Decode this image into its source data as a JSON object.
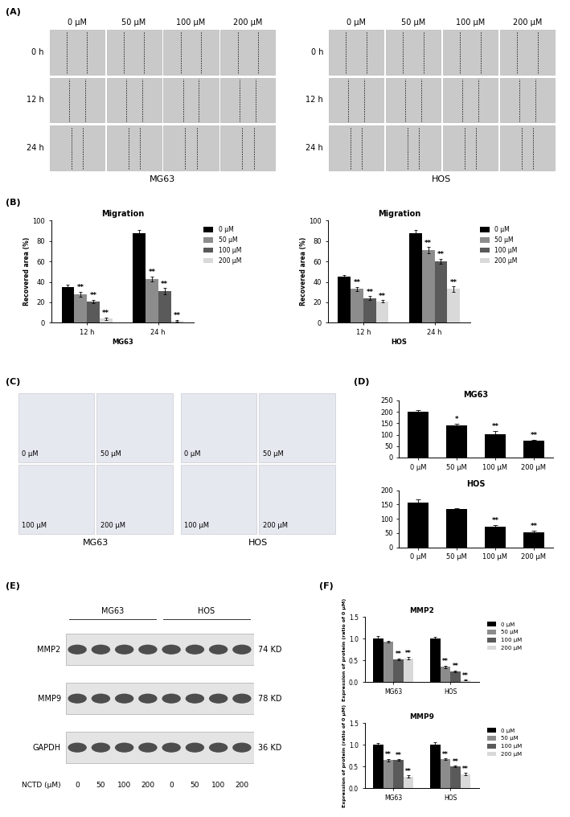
{
  "panel_labels": [
    "(A)",
    "(B)",
    "(C)",
    "(D)",
    "(E)",
    "(F)"
  ],
  "wound_healing": [
    {
      "cell_line": "MG63",
      "concentrations": [
        "0 µM",
        "50 µM",
        "100 µM",
        "200 µM"
      ],
      "times": [
        "0 h",
        "12 h",
        "24 h"
      ]
    },
    {
      "cell_line": "HOS",
      "concentrations": [
        "0 µM",
        "50 µM",
        "100 µM",
        "200 µM"
      ],
      "times": [
        "0 h",
        "12 h",
        "24 h"
      ]
    }
  ],
  "transwell": [
    {
      "cell_line": "MG63",
      "concentrations": [
        "0 µM",
        "50 µM",
        "100 µM",
        "200 µM"
      ]
    },
    {
      "cell_line": "HOS",
      "concentrations": [
        "0 µM",
        "50 µM",
        "100 µM",
        "200 µM"
      ]
    }
  ],
  "western_blot": {
    "cell_lines": [
      "MG63",
      "HOS"
    ],
    "proteins": [
      {
        "name": "MMP2",
        "size": "74 KD"
      },
      {
        "name": "MMP9",
        "size": "78 KD"
      },
      {
        "name": "GAPDH",
        "size": "36 KD"
      }
    ],
    "treatment_label": "NCTD (µM)",
    "lanes": [
      "0",
      "50",
      "100",
      "200"
    ]
  },
  "chart_data": [
    {
      "type": "bar",
      "title": "Migration",
      "x_label": "MG63",
      "y_label": "Recovered area (%)",
      "categories": [
        "12 h",
        "24 h"
      ],
      "series": [
        {
          "name": "0 µM",
          "color": "#000000",
          "values": [
            35,
            88
          ],
          "errors": [
            2,
            3
          ],
          "annotations": [
            null,
            null
          ]
        },
        {
          "name": "50 µM",
          "color": "#8c8c8c",
          "values": [
            28,
            43
          ],
          "errors": [
            2.5,
            2.5
          ],
          "annotations": [
            "**",
            "**"
          ]
        },
        {
          "name": "100 µM",
          "color": "#5a5a5a",
          "values": [
            21,
            31
          ],
          "errors": [
            1.5,
            3
          ],
          "annotations": [
            "**",
            "**"
          ]
        },
        {
          "name": "200 µM",
          "color": "#d9d9d9",
          "values": [
            4,
            2
          ],
          "errors": [
            1,
            1
          ],
          "annotations": [
            "**",
            "**"
          ]
        }
      ],
      "ylim": [
        0,
        100
      ],
      "yticks": [
        0,
        20,
        40,
        60,
        80,
        100
      ],
      "legend": "upper left"
    },
    {
      "type": "bar",
      "title": "Migration",
      "x_label": "HOS",
      "y_label": "Recovered area (%)",
      "categories": [
        "12 h",
        "24 h"
      ],
      "series": [
        {
          "name": "0 µM",
          "color": "#000000",
          "values": [
            45,
            88
          ],
          "errors": [
            1.5,
            2.5
          ],
          "annotations": [
            null,
            null
          ]
        },
        {
          "name": "50 µM",
          "color": "#8c8c8c",
          "values": [
            33,
            71
          ],
          "errors": [
            2,
            3
          ],
          "annotations": [
            "**",
            "**"
          ]
        },
        {
          "name": "100 µM",
          "color": "#5a5a5a",
          "values": [
            24,
            60
          ],
          "errors": [
            2,
            2.5
          ],
          "annotations": [
            "**",
            "**"
          ]
        },
        {
          "name": "200 µM",
          "color": "#d9d9d9",
          "values": [
            21,
            33
          ],
          "errors": [
            1,
            2.5
          ],
          "annotations": [
            "**",
            "**"
          ]
        }
      ],
      "ylim": [
        0,
        100
      ],
      "yticks": [
        0,
        20,
        40,
        60,
        80,
        100
      ],
      "legend": "upper left"
    },
    {
      "type": "bar",
      "title": "MG63",
      "categories": [
        "0 µM",
        "50 µM",
        "100 µM",
        "200 µM"
      ],
      "values": [
        200,
        142,
        103,
        72
      ],
      "errors": [
        8,
        6,
        14,
        6
      ],
      "annotations": [
        null,
        "*",
        "**",
        "**"
      ],
      "color": "#000000",
      "ylim": [
        0,
        250
      ],
      "yticks": [
        0,
        50,
        100,
        150,
        200,
        250
      ]
    },
    {
      "type": "bar",
      "title": "HOS",
      "categories": [
        "0 µM",
        "50 µM",
        "100 µM",
        "200 µM"
      ],
      "values": [
        158,
        133,
        72,
        52
      ],
      "errors": [
        11,
        5,
        7,
        6
      ],
      "annotations": [
        null,
        null,
        "**",
        "**"
      ],
      "color": "#000000",
      "ylim": [
        0,
        200
      ],
      "yticks": [
        0,
        50,
        100,
        150,
        200
      ]
    },
    {
      "type": "bar",
      "title": "MMP2",
      "y_label": "Expression of protein (ratio of 0 µM)",
      "categories": [
        "MG63",
        "HOS"
      ],
      "series": [
        {
          "name": "0 µM",
          "color": "#000000",
          "values": [
            1.0,
            1.0
          ],
          "errors": [
            0.05,
            0.04
          ],
          "annotations": [
            null,
            null
          ]
        },
        {
          "name": "50 µM",
          "color": "#8c8c8c",
          "values": [
            0.93,
            0.35
          ],
          "errors": [
            0.02,
            0.03
          ],
          "annotations": [
            null,
            "**"
          ]
        },
        {
          "name": "100 µM",
          "color": "#5a5a5a",
          "values": [
            0.53,
            0.25
          ],
          "errors": [
            0.02,
            0.02
          ],
          "annotations": [
            "**",
            "**"
          ]
        },
        {
          "name": "200 µM",
          "color": "#d9d9d9",
          "values": [
            0.55,
            0.05
          ],
          "errors": [
            0.02,
            0.01
          ],
          "annotations": [
            "**",
            "**"
          ]
        }
      ],
      "ylim": [
        0,
        1.5
      ],
      "yticks": [
        {
          "value": 0,
          "label": "0.0"
        },
        0.5,
        {
          "value": 1,
          "label": "1.0"
        },
        1.5
      ],
      "legend": "upper left"
    },
    {
      "type": "bar",
      "title": "MMP9",
      "y_label": "Expression of protein (ratio of 0 µM)",
      "categories": [
        "MG63",
        "HOS"
      ],
      "series": [
        {
          "name": "0 µM",
          "color": "#000000",
          "values": [
            1.0,
            1.0
          ],
          "errors": [
            0.05,
            0.06
          ],
          "annotations": [
            null,
            null
          ]
        },
        {
          "name": "50 µM",
          "color": "#8c8c8c",
          "values": [
            0.65,
            0.67
          ],
          "errors": [
            0.03,
            0.02
          ],
          "annotations": [
            "**",
            "**"
          ]
        },
        {
          "name": "100 µM",
          "color": "#5a5a5a",
          "values": [
            0.65,
            0.5
          ],
          "errors": [
            0.02,
            0.02
          ],
          "annotations": [
            "**",
            "**"
          ]
        },
        {
          "name": "200 µM",
          "color": "#d9d9d9",
          "values": [
            0.27,
            0.33
          ],
          "errors": [
            0.03,
            0.03
          ],
          "annotations": [
            "**",
            "**"
          ]
        }
      ],
      "ylim": [
        0,
        1.5
      ],
      "yticks": [
        {
          "value": 0,
          "label": "0.0"
        },
        0.5,
        {
          "value": 1,
          "label": "1.0"
        },
        1.5
      ],
      "legend": "upper left"
    }
  ]
}
